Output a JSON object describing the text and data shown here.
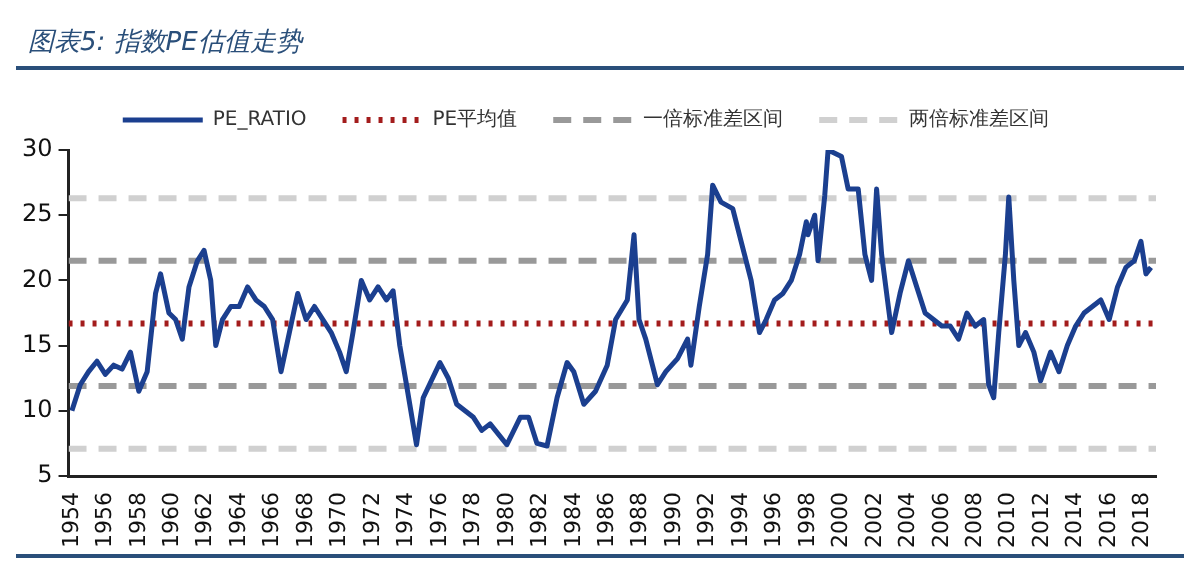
{
  "chart_data": {
    "type": "line",
    "title": "图表5: 指数PE估值走势",
    "series": [
      {
        "name": "PE_RATIO",
        "color": "#1b3f8f",
        "x": [
          1954.0,
          1954.5,
          1955.0,
          1955.5,
          1956.0,
          1956.5,
          1957.0,
          1957.5,
          1958.0,
          1958.5,
          1959.0,
          1959.3,
          1959.8,
          1960.2,
          1960.6,
          1961.0,
          1961.5,
          1961.9,
          1962.3,
          1962.6,
          1963.0,
          1963.5,
          1964.0,
          1964.5,
          1965.0,
          1965.5,
          1966.0,
          1966.5,
          1967.0,
          1967.5,
          1968.0,
          1968.5,
          1969.0,
          1969.5,
          1970.0,
          1970.4,
          1970.8,
          1971.3,
          1971.8,
          1972.3,
          1972.8,
          1973.2,
          1973.6,
          1974.0,
          1974.6,
          1975.0,
          1976.0,
          1976.5,
          1977.0,
          1978.0,
          1978.5,
          1979.0,
          1980.0,
          1980.8,
          1981.3,
          1981.8,
          1982.4,
          1983.0,
          1983.6,
          1984.0,
          1984.6,
          1985.3,
          1986.0,
          1986.5,
          1987.2,
          1987.6,
          1987.9,
          1988.3,
          1989.0,
          1989.5,
          1990.2,
          1990.8,
          1991.0,
          1991.5,
          1992.0,
          1992.3,
          1992.8,
          1993.5,
          1994.0,
          1994.6,
          1995.1,
          1995.5,
          1996.0,
          1996.5,
          1997.0,
          1997.5,
          1997.9,
          1998.0,
          1998.4,
          1998.6,
          1999.0,
          1999.2,
          2000.0,
          2000.4,
          2001.0,
          2001.4,
          2001.8,
          2002.1,
          2002.4,
          2002.7,
          2003.0,
          2003.5,
          2004.0,
          2004.5,
          2005.0,
          2005.5,
          2006.0,
          2006.5,
          2007.0,
          2007.5,
          2008.0,
          2008.5,
          2008.8,
          2009.1,
          2009.4,
          2009.8,
          2010.0,
          2010.3,
          2010.6,
          2011.0,
          2011.5,
          2011.9,
          2012.5,
          2013.0,
          2013.5,
          2014.0,
          2014.5,
          2015.0,
          2015.5,
          2016.0,
          2016.5,
          2017.0,
          2017.5,
          2017.9,
          2018.2,
          2018.5
        ],
        "values": [
          10,
          12,
          13,
          13.8,
          12.8,
          13.5,
          13.2,
          14.5,
          11.5,
          13,
          19,
          20.5,
          17.5,
          17,
          15.5,
          19.5,
          21.5,
          22.3,
          20,
          15,
          17,
          18,
          18,
          19.5,
          18.5,
          18,
          17,
          13,
          16,
          19,
          17,
          18,
          17,
          16,
          14.5,
          13,
          16,
          20,
          18.5,
          19.5,
          18.5,
          19.2,
          15,
          12,
          7.4,
          11,
          13.7,
          12.5,
          10.5,
          9.5,
          8.5,
          9,
          7.4,
          9.5,
          9.5,
          7.5,
          7.3,
          11,
          13.7,
          13,
          10.5,
          11.5,
          13.5,
          17,
          18.5,
          23.5,
          17,
          15.5,
          12,
          13,
          14,
          15.5,
          13.5,
          18,
          22,
          27.3,
          26,
          25.5,
          23,
          20,
          16,
          17,
          18.5,
          19,
          20,
          22,
          24.5,
          23.5,
          25,
          21.5,
          26.5,
          30,
          29.5,
          27,
          27,
          22,
          20,
          27,
          22,
          19,
          16,
          19,
          21.5,
          19.5,
          17.5,
          17,
          16.5,
          16.5,
          15.5,
          17.5,
          16.5,
          17,
          12,
          11,
          16,
          22,
          26.4,
          20,
          15,
          16,
          14.5,
          12.3,
          14.5,
          13,
          15,
          16.5,
          17.5,
          18,
          18.5,
          17,
          19.5,
          21,
          21.5,
          23,
          20.5,
          21
        ]
      }
    ],
    "ref_lines": [
      {
        "axis": "y",
        "value": 16.7,
        "label": "PE平均值",
        "color": "#a31c1c",
        "line_style": "dotted"
      },
      {
        "axis": "y",
        "value": 21.5,
        "label": "一倍标准差区间",
        "color": "#999999",
        "line_style": "dashed"
      },
      {
        "axis": "y",
        "value": 11.9,
        "color": "#999999",
        "line_style": "dashed"
      },
      {
        "axis": "y",
        "value": 26.3,
        "label": "两倍标准差区间",
        "color": "#d0d0d0",
        "line_style": "dashed"
      },
      {
        "axis": "y",
        "value": 7.1,
        "color": "#d0d0d0",
        "line_style": "dashed"
      }
    ],
    "xlim": [
      1953.8,
      2018.8
    ],
    "xticks": [
      1954,
      1956,
      1958,
      1960,
      1962,
      1964,
      1966,
      1968,
      1970,
      1972,
      1974,
      1976,
      1978,
      1980,
      1982,
      1984,
      1986,
      1988,
      1990,
      1992,
      1994,
      1996,
      1998,
      2000,
      2002,
      2004,
      2006,
      2008,
      2010,
      2012,
      2014,
      2016,
      2018
    ],
    "ylim": [
      5,
      30
    ],
    "yticks": [
      5,
      10,
      15,
      20,
      25,
      30
    ],
    "grid": false,
    "legend": "top",
    "marker": "none",
    "line_style": "solid"
  }
}
